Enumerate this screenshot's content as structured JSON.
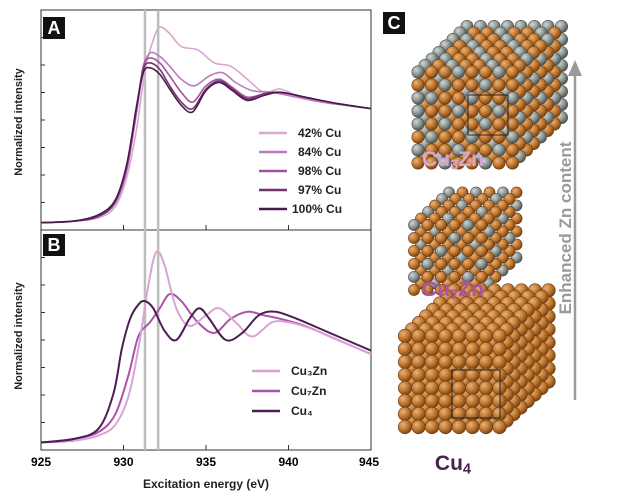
{
  "panels": {
    "a_letter": "A",
    "b_letter": "B",
    "c_letter": "C"
  },
  "axes": {
    "xlabel": "Excitation energy (eV)",
    "ylabel_a": "Normalized intensity",
    "ylabel_b": "Normalized intensity",
    "x_ticks": [
      "925",
      "930",
      "935",
      "940",
      "945"
    ]
  },
  "structures": {
    "top_prefix": "Cu",
    "top_sub": "3",
    "top_suffix": "Zn",
    "mid_prefix": "Cu",
    "mid_sub": "7",
    "mid_suffix": "Zn",
    "bot_prefix": "Cu",
    "bot_sub": "4",
    "arrow_label": "Enhanced Zn content"
  },
  "colors": {
    "s42": "#d7a7d4",
    "s84": "#bd7bbf",
    "s98": "#a3529f",
    "s97": "#72326f",
    "s100": "#4a1a4e",
    "cu3zn": "#d8a4d6",
    "cu7zn": "#ad52a9",
    "cu4": "#4b1f52",
    "copper": "#c1772f",
    "zinc": "#8e9793",
    "arrow": "#9a9a9a",
    "vline": "#bdbdbd"
  },
  "chart_data": [
    {
      "panel": "A",
      "type": "line",
      "xlabel": "Excitation energy (eV)",
      "ylabel": "Normalized intensity",
      "xlim": [
        925,
        945
      ],
      "ylim": [
        0,
        1.3
      ],
      "x_ticks": [
        925,
        930,
        935,
        940,
        945
      ],
      "vlines": [
        931.3,
        932.1
      ],
      "legend_position": "lower-right",
      "series": [
        {
          "name": "42% Cu",
          "color": "#d7a7d4",
          "points": [
            [
              925,
              0.02
            ],
            [
              927,
              0.03
            ],
            [
              928.5,
              0.05
            ],
            [
              929.5,
              0.12
            ],
            [
              930.2,
              0.3
            ],
            [
              930.8,
              0.6
            ],
            [
              931.3,
              0.95
            ],
            [
              931.8,
              1.14
            ],
            [
              932.2,
              1.22
            ],
            [
              932.8,
              1.18
            ],
            [
              933.5,
              1.1
            ],
            [
              934.5,
              1.08
            ],
            [
              935.5,
              1.0
            ],
            [
              936.5,
              0.98
            ],
            [
              937.5,
              0.9
            ],
            [
              938.5,
              0.82
            ],
            [
              939.5,
              0.84
            ],
            [
              940.5,
              0.8
            ],
            [
              942,
              0.76
            ],
            [
              943.5,
              0.74
            ],
            [
              945,
              0.72
            ]
          ]
        },
        {
          "name": "84% Cu",
          "color": "#bd7bbf",
          "points": [
            [
              925,
              0.02
            ],
            [
              927,
              0.03
            ],
            [
              928.5,
              0.06
            ],
            [
              929.5,
              0.14
            ],
            [
              930.2,
              0.34
            ],
            [
              930.8,
              0.7
            ],
            [
              931.2,
              0.96
            ],
            [
              931.6,
              1.06
            ],
            [
              932.2,
              1.04
            ],
            [
              932.8,
              0.98
            ],
            [
              933.5,
              0.9
            ],
            [
              934.3,
              0.86
            ],
            [
              935.2,
              0.92
            ],
            [
              936,
              0.94
            ],
            [
              936.8,
              0.88
            ],
            [
              937.8,
              0.83
            ],
            [
              939,
              0.82
            ],
            [
              940.5,
              0.79
            ],
            [
              942,
              0.76
            ],
            [
              943.5,
              0.74
            ],
            [
              945,
              0.72
            ]
          ]
        },
        {
          "name": "98% Cu",
          "color": "#a3529f",
          "points": [
            [
              925,
              0.02
            ],
            [
              927,
              0.03
            ],
            [
              928.5,
              0.06
            ],
            [
              929.5,
              0.15
            ],
            [
              930.2,
              0.36
            ],
            [
              930.8,
              0.72
            ],
            [
              931.2,
              0.98
            ],
            [
              931.6,
              1.03
            ],
            [
              932.2,
              1.0
            ],
            [
              932.8,
              0.92
            ],
            [
              933.5,
              0.82
            ],
            [
              934.2,
              0.76
            ],
            [
              935,
              0.86
            ],
            [
              935.8,
              0.9
            ],
            [
              936.6,
              0.85
            ],
            [
              937.5,
              0.79
            ],
            [
              938.5,
              0.81
            ],
            [
              939.5,
              0.82
            ],
            [
              941,
              0.79
            ],
            [
              943,
              0.75
            ],
            [
              945,
              0.72
            ]
          ]
        },
        {
          "name": "97% Cu",
          "color": "#72326f",
          "points": [
            [
              925,
              0.02
            ],
            [
              927,
              0.03
            ],
            [
              928.5,
              0.06
            ],
            [
              929.5,
              0.15
            ],
            [
              930.2,
              0.37
            ],
            [
              930.8,
              0.73
            ],
            [
              931.2,
              0.96
            ],
            [
              931.6,
              1.0
            ],
            [
              932.2,
              0.96
            ],
            [
              932.8,
              0.86
            ],
            [
              933.5,
              0.76
            ],
            [
              934.2,
              0.72
            ],
            [
              935,
              0.84
            ],
            [
              935.8,
              0.89
            ],
            [
              936.6,
              0.84
            ],
            [
              937.5,
              0.78
            ],
            [
              938.5,
              0.81
            ],
            [
              939.5,
              0.82
            ],
            [
              941,
              0.79
            ],
            [
              943,
              0.75
            ],
            [
              945,
              0.72
            ]
          ]
        },
        {
          "name": "100% Cu",
          "color": "#4a1a4e",
          "points": [
            [
              925,
              0.02
            ],
            [
              927,
              0.03
            ],
            [
              928.5,
              0.07
            ],
            [
              929.5,
              0.16
            ],
            [
              930.2,
              0.38
            ],
            [
              930.8,
              0.74
            ],
            [
              931.2,
              0.94
            ],
            [
              931.6,
              0.97
            ],
            [
              932.2,
              0.93
            ],
            [
              932.8,
              0.84
            ],
            [
              933.5,
              0.74
            ],
            [
              934.2,
              0.7
            ],
            [
              935,
              0.83
            ],
            [
              935.8,
              0.88
            ],
            [
              936.6,
              0.83
            ],
            [
              937.5,
              0.77
            ],
            [
              938.5,
              0.8
            ],
            [
              939.5,
              0.82
            ],
            [
              941,
              0.79
            ],
            [
              943,
              0.75
            ],
            [
              945,
              0.72
            ]
          ]
        }
      ]
    },
    {
      "panel": "B",
      "type": "line",
      "xlabel": "Excitation energy (eV)",
      "ylabel": "Normalized intensity",
      "xlim": [
        925,
        945
      ],
      "ylim": [
        0,
        1.2
      ],
      "x_ticks": [
        925,
        930,
        935,
        940,
        945
      ],
      "vlines": [
        931.3,
        932.1
      ],
      "legend_position": "lower-right",
      "series": [
        {
          "name": "Cu₃Zn",
          "color": "#d8a4d6",
          "points": [
            [
              925,
              0.02
            ],
            [
              927,
              0.03
            ],
            [
              928.5,
              0.06
            ],
            [
              929.5,
              0.12
            ],
            [
              930.3,
              0.28
            ],
            [
              930.9,
              0.55
            ],
            [
              931.4,
              0.85
            ],
            [
              931.8,
              1.05
            ],
            [
              932.1,
              1.1
            ],
            [
              932.5,
              1.02
            ],
            [
              933.2,
              0.78
            ],
            [
              934,
              0.68
            ],
            [
              935,
              0.74
            ],
            [
              935.8,
              0.78
            ],
            [
              936.8,
              0.7
            ],
            [
              937.8,
              0.62
            ],
            [
              939,
              0.7
            ],
            [
              940,
              0.7
            ],
            [
              941.5,
              0.66
            ],
            [
              943.5,
              0.58
            ],
            [
              945,
              0.52
            ]
          ]
        },
        {
          "name": "Cu₇Zn",
          "color": "#ad52a9",
          "points": [
            [
              925,
              0.02
            ],
            [
              927,
              0.04
            ],
            [
              928.5,
              0.08
            ],
            [
              929.5,
              0.18
            ],
            [
              930.3,
              0.4
            ],
            [
              930.9,
              0.62
            ],
            [
              931.6,
              0.7
            ],
            [
              932.2,
              0.78
            ],
            [
              932.8,
              0.86
            ],
            [
              933.5,
              0.82
            ],
            [
              934.5,
              0.7
            ],
            [
              935.5,
              0.64
            ],
            [
              936.5,
              0.72
            ],
            [
              937.5,
              0.76
            ],
            [
              938.5,
              0.74
            ],
            [
              939.5,
              0.72
            ],
            [
              941,
              0.68
            ],
            [
              943,
              0.6
            ],
            [
              945,
              0.52
            ]
          ]
        },
        {
          "name": "Cu₄",
          "color": "#4b1f52",
          "points": [
            [
              925,
              0.02
            ],
            [
              927,
              0.04
            ],
            [
              928.5,
              0.1
            ],
            [
              929.4,
              0.3
            ],
            [
              929.9,
              0.55
            ],
            [
              930.4,
              0.72
            ],
            [
              930.9,
              0.8
            ],
            [
              931.3,
              0.82
            ],
            [
              931.8,
              0.78
            ],
            [
              932.5,
              0.65
            ],
            [
              933.2,
              0.6
            ],
            [
              934,
              0.72
            ],
            [
              934.6,
              0.78
            ],
            [
              935.2,
              0.72
            ],
            [
              936.2,
              0.6
            ],
            [
              937.2,
              0.64
            ],
            [
              938.2,
              0.74
            ],
            [
              939.2,
              0.76
            ],
            [
              940.5,
              0.72
            ],
            [
              942.5,
              0.64
            ],
            [
              945,
              0.54
            ]
          ]
        }
      ]
    }
  ]
}
